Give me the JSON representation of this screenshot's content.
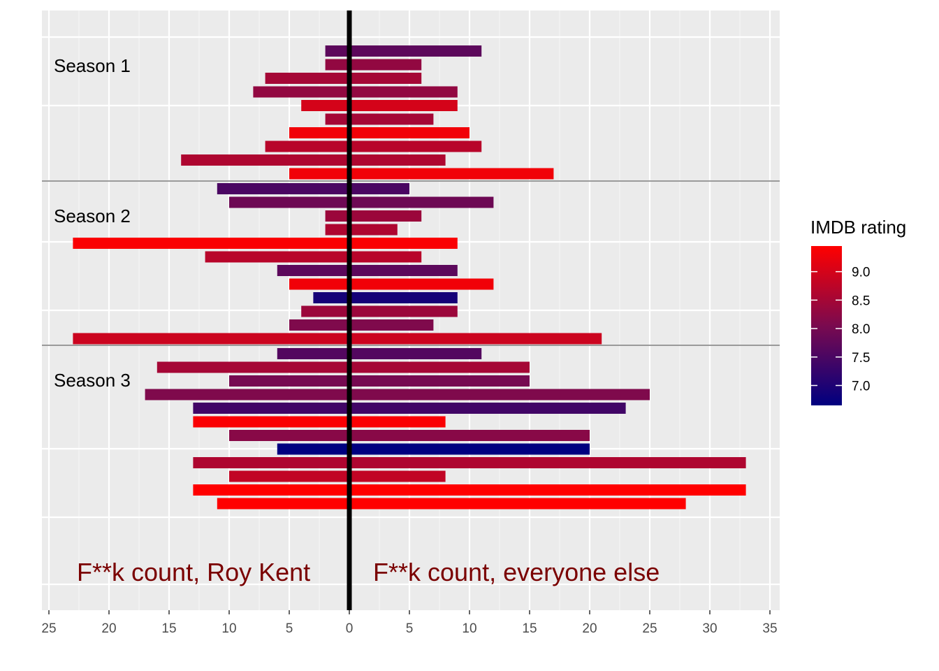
{
  "chart_data": {
    "type": "bar",
    "orientation": "horizontal-diverging",
    "xlim": [
      -26,
      36
    ],
    "x_ticks": [
      -25,
      -20,
      -15,
      -10,
      -5,
      0,
      5,
      10,
      15,
      20,
      25,
      30,
      35
    ],
    "x_tick_labels": [
      "25",
      "20",
      "15",
      "10",
      "5",
      "0",
      "5",
      "10",
      "15",
      "20",
      "25",
      "30",
      "35"
    ],
    "grid": true,
    "annotations": {
      "seasons": [
        "Season 1",
        "Season 2",
        "Season 3"
      ],
      "left_label": "F**k count, Roy Kent",
      "right_label": "F**k count, everyone else",
      "label_color": "#7a0000"
    },
    "legend": {
      "title": "IMDB rating",
      "placement": "right",
      "ticks": [
        9.0,
        8.5,
        8.0,
        7.5,
        7.0
      ],
      "tick_labels": [
        "9.0",
        "8.5",
        "8.0",
        "7.5",
        "7.0"
      ],
      "range": [
        6.65,
        9.45
      ],
      "color_low": "#000080",
      "color_mid": "#7a0a4f",
      "color_high": "#ff0000"
    },
    "series": [
      {
        "season": 1,
        "roy_kent": [
          2,
          2,
          7,
          8,
          4,
          2,
          5,
          7,
          14,
          5
        ],
        "everyone_else": [
          11,
          6,
          6,
          9,
          9,
          7,
          10,
          11,
          8,
          17
        ],
        "imdb_rating": [
          7.7,
          8.3,
          8.5,
          8.3,
          9.0,
          8.5,
          9.3,
          8.7,
          8.6,
          9.3
        ]
      },
      {
        "season": 2,
        "roy_kent": [
          11,
          10,
          2,
          2,
          23,
          12,
          6,
          5,
          3,
          4,
          5,
          23
        ],
        "everyone_else": [
          5,
          12,
          6,
          4,
          9,
          6,
          9,
          12,
          9,
          9,
          7,
          21
        ],
        "imdb_rating": [
          7.5,
          7.9,
          8.4,
          8.6,
          9.4,
          8.7,
          7.7,
          9.3,
          6.9,
          8.4,
          8.1,
          8.9
        ]
      },
      {
        "season": 3,
        "roy_kent": [
          6,
          16,
          10,
          17,
          13,
          13,
          10,
          6,
          13,
          10,
          13,
          11
        ],
        "everyone_else": [
          11,
          15,
          15,
          25,
          23,
          8,
          20,
          20,
          33,
          8,
          33,
          28
        ],
        "imdb_rating": [
          7.6,
          8.5,
          8.0,
          8.1,
          7.4,
          9.4,
          8.2,
          6.65,
          8.6,
          8.8,
          9.45,
          9.45
        ]
      }
    ]
  }
}
